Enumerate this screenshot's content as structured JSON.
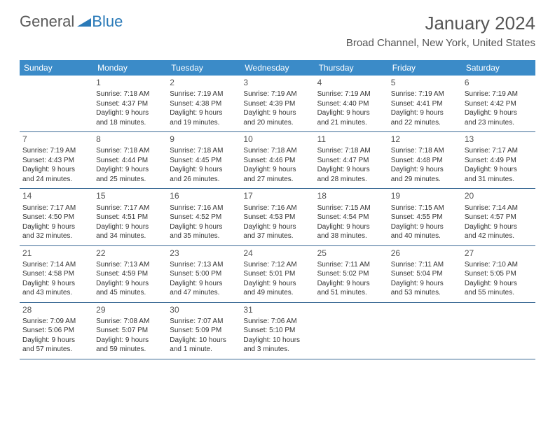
{
  "logo": {
    "general": "General",
    "blue": "Blue"
  },
  "title": "January 2024",
  "location": "Broad Channel, New York, United States",
  "header_bg": "#3b8bc8",
  "weekdays": [
    "Sunday",
    "Monday",
    "Tuesday",
    "Wednesday",
    "Thursday",
    "Friday",
    "Saturday"
  ],
  "weeks": [
    [
      {
        "n": "",
        "l1": "",
        "l2": "",
        "l3": "",
        "l4": ""
      },
      {
        "n": "1",
        "l1": "Sunrise: 7:18 AM",
        "l2": "Sunset: 4:37 PM",
        "l3": "Daylight: 9 hours",
        "l4": "and 18 minutes."
      },
      {
        "n": "2",
        "l1": "Sunrise: 7:19 AM",
        "l2": "Sunset: 4:38 PM",
        "l3": "Daylight: 9 hours",
        "l4": "and 19 minutes."
      },
      {
        "n": "3",
        "l1": "Sunrise: 7:19 AM",
        "l2": "Sunset: 4:39 PM",
        "l3": "Daylight: 9 hours",
        "l4": "and 20 minutes."
      },
      {
        "n": "4",
        "l1": "Sunrise: 7:19 AM",
        "l2": "Sunset: 4:40 PM",
        "l3": "Daylight: 9 hours",
        "l4": "and 21 minutes."
      },
      {
        "n": "5",
        "l1": "Sunrise: 7:19 AM",
        "l2": "Sunset: 4:41 PM",
        "l3": "Daylight: 9 hours",
        "l4": "and 22 minutes."
      },
      {
        "n": "6",
        "l1": "Sunrise: 7:19 AM",
        "l2": "Sunset: 4:42 PM",
        "l3": "Daylight: 9 hours",
        "l4": "and 23 minutes."
      }
    ],
    [
      {
        "n": "7",
        "l1": "Sunrise: 7:19 AM",
        "l2": "Sunset: 4:43 PM",
        "l3": "Daylight: 9 hours",
        "l4": "and 24 minutes."
      },
      {
        "n": "8",
        "l1": "Sunrise: 7:18 AM",
        "l2": "Sunset: 4:44 PM",
        "l3": "Daylight: 9 hours",
        "l4": "and 25 minutes."
      },
      {
        "n": "9",
        "l1": "Sunrise: 7:18 AM",
        "l2": "Sunset: 4:45 PM",
        "l3": "Daylight: 9 hours",
        "l4": "and 26 minutes."
      },
      {
        "n": "10",
        "l1": "Sunrise: 7:18 AM",
        "l2": "Sunset: 4:46 PM",
        "l3": "Daylight: 9 hours",
        "l4": "and 27 minutes."
      },
      {
        "n": "11",
        "l1": "Sunrise: 7:18 AM",
        "l2": "Sunset: 4:47 PM",
        "l3": "Daylight: 9 hours",
        "l4": "and 28 minutes."
      },
      {
        "n": "12",
        "l1": "Sunrise: 7:18 AM",
        "l2": "Sunset: 4:48 PM",
        "l3": "Daylight: 9 hours",
        "l4": "and 29 minutes."
      },
      {
        "n": "13",
        "l1": "Sunrise: 7:17 AM",
        "l2": "Sunset: 4:49 PM",
        "l3": "Daylight: 9 hours",
        "l4": "and 31 minutes."
      }
    ],
    [
      {
        "n": "14",
        "l1": "Sunrise: 7:17 AM",
        "l2": "Sunset: 4:50 PM",
        "l3": "Daylight: 9 hours",
        "l4": "and 32 minutes."
      },
      {
        "n": "15",
        "l1": "Sunrise: 7:17 AM",
        "l2": "Sunset: 4:51 PM",
        "l3": "Daylight: 9 hours",
        "l4": "and 34 minutes."
      },
      {
        "n": "16",
        "l1": "Sunrise: 7:16 AM",
        "l2": "Sunset: 4:52 PM",
        "l3": "Daylight: 9 hours",
        "l4": "and 35 minutes."
      },
      {
        "n": "17",
        "l1": "Sunrise: 7:16 AM",
        "l2": "Sunset: 4:53 PM",
        "l3": "Daylight: 9 hours",
        "l4": "and 37 minutes."
      },
      {
        "n": "18",
        "l1": "Sunrise: 7:15 AM",
        "l2": "Sunset: 4:54 PM",
        "l3": "Daylight: 9 hours",
        "l4": "and 38 minutes."
      },
      {
        "n": "19",
        "l1": "Sunrise: 7:15 AM",
        "l2": "Sunset: 4:55 PM",
        "l3": "Daylight: 9 hours",
        "l4": "and 40 minutes."
      },
      {
        "n": "20",
        "l1": "Sunrise: 7:14 AM",
        "l2": "Sunset: 4:57 PM",
        "l3": "Daylight: 9 hours",
        "l4": "and 42 minutes."
      }
    ],
    [
      {
        "n": "21",
        "l1": "Sunrise: 7:14 AM",
        "l2": "Sunset: 4:58 PM",
        "l3": "Daylight: 9 hours",
        "l4": "and 43 minutes."
      },
      {
        "n": "22",
        "l1": "Sunrise: 7:13 AM",
        "l2": "Sunset: 4:59 PM",
        "l3": "Daylight: 9 hours",
        "l4": "and 45 minutes."
      },
      {
        "n": "23",
        "l1": "Sunrise: 7:13 AM",
        "l2": "Sunset: 5:00 PM",
        "l3": "Daylight: 9 hours",
        "l4": "and 47 minutes."
      },
      {
        "n": "24",
        "l1": "Sunrise: 7:12 AM",
        "l2": "Sunset: 5:01 PM",
        "l3": "Daylight: 9 hours",
        "l4": "and 49 minutes."
      },
      {
        "n": "25",
        "l1": "Sunrise: 7:11 AM",
        "l2": "Sunset: 5:02 PM",
        "l3": "Daylight: 9 hours",
        "l4": "and 51 minutes."
      },
      {
        "n": "26",
        "l1": "Sunrise: 7:11 AM",
        "l2": "Sunset: 5:04 PM",
        "l3": "Daylight: 9 hours",
        "l4": "and 53 minutes."
      },
      {
        "n": "27",
        "l1": "Sunrise: 7:10 AM",
        "l2": "Sunset: 5:05 PM",
        "l3": "Daylight: 9 hours",
        "l4": "and 55 minutes."
      }
    ],
    [
      {
        "n": "28",
        "l1": "Sunrise: 7:09 AM",
        "l2": "Sunset: 5:06 PM",
        "l3": "Daylight: 9 hours",
        "l4": "and 57 minutes."
      },
      {
        "n": "29",
        "l1": "Sunrise: 7:08 AM",
        "l2": "Sunset: 5:07 PM",
        "l3": "Daylight: 9 hours",
        "l4": "and 59 minutes."
      },
      {
        "n": "30",
        "l1": "Sunrise: 7:07 AM",
        "l2": "Sunset: 5:09 PM",
        "l3": "Daylight: 10 hours",
        "l4": "and 1 minute."
      },
      {
        "n": "31",
        "l1": "Sunrise: 7:06 AM",
        "l2": "Sunset: 5:10 PM",
        "l3": "Daylight: 10 hours",
        "l4": "and 3 minutes."
      },
      {
        "n": "",
        "l1": "",
        "l2": "",
        "l3": "",
        "l4": ""
      },
      {
        "n": "",
        "l1": "",
        "l2": "",
        "l3": "",
        "l4": ""
      },
      {
        "n": "",
        "l1": "",
        "l2": "",
        "l3": "",
        "l4": ""
      }
    ]
  ]
}
